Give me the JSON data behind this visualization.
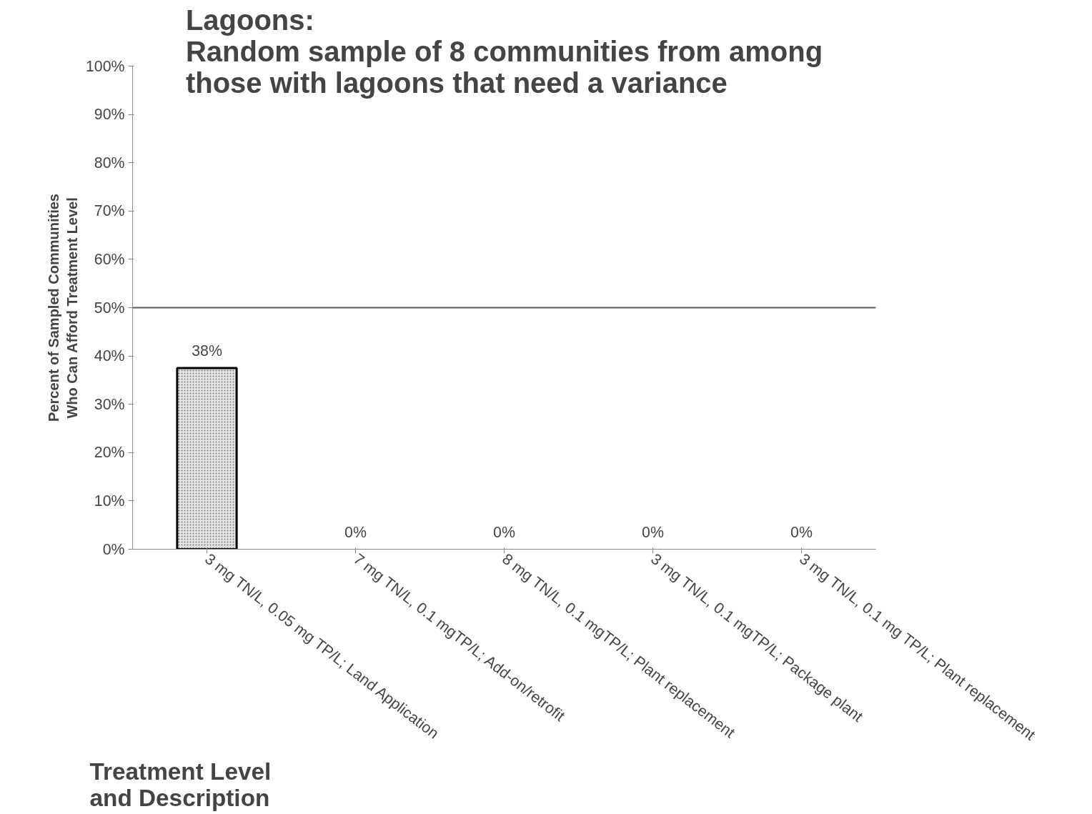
{
  "chart_data": {
    "type": "bar",
    "title": "Lagoons:\nRandom sample of 8 communities from among\nthose with lagoons that need a variance",
    "xlabel": "Treatment Level\nand Description",
    "ylabel": "Percent of Sampled Communities\nWho Can Afford Treatment Level",
    "categories": [
      "3 mg TN/L, 0.05 mg TP/L; Land Application",
      "7 mg TN/L, 0.1 mgTP/L; Add-on/retrofit",
      "8 mg TN/L, 0.1 mgTP/L; Plant replacement",
      "3 mg TN/L, 0.1 mgTP/L; Package plant",
      "3 mg TN/L, 0.1 mg TP/L; Plant replacement"
    ],
    "values": [
      37.5,
      0,
      0,
      0,
      0
    ],
    "value_labels": [
      "38%",
      "0%",
      "0%",
      "0%",
      "0%"
    ],
    "color": "#e6e6e6",
    "ylim": [
      0,
      100
    ],
    "yticks": [
      {
        "value": 0,
        "label": "0%"
      },
      {
        "value": 10,
        "label": "10%"
      },
      {
        "value": 20,
        "label": "20%"
      },
      {
        "value": 30,
        "label": "30%"
      },
      {
        "value": 40,
        "label": "40%"
      },
      {
        "value": 50,
        "label": "50%"
      },
      {
        "value": 60,
        "label": "60%"
      },
      {
        "value": 70,
        "label": "70%"
      },
      {
        "value": 80,
        "label": "80%"
      },
      {
        "value": 90,
        "label": "90%"
      },
      {
        "value": 100,
        "label": "100%"
      }
    ],
    "ref_lines": [
      {
        "axis": "y",
        "value": 50,
        "label": null,
        "color": "#595959"
      }
    ],
    "grid": false
  }
}
